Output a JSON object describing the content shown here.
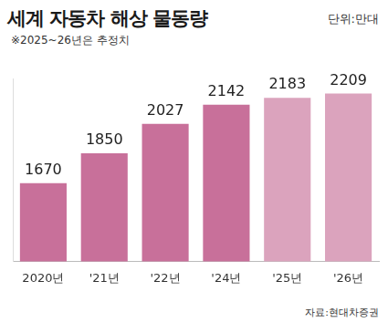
{
  "chart_data": {
    "type": "bar",
    "title": "세계 자동차 해상 물동량",
    "y_label": "단위:만대",
    "subtitle": "※2025~26년은 추정치",
    "source": "자료:현대차증권",
    "categories": [
      "2020년",
      "'21년",
      "'22년",
      "'24년",
      "'25년",
      "'26년"
    ],
    "values": [
      1670,
      1850,
      2027,
      2142,
      2183,
      2209
    ],
    "colors": [
      "#c8709a",
      "#c8709a",
      "#c8709a",
      "#c8709a",
      "#dba3bd",
      "#dba3bd"
    ],
    "ylim": [
      1200,
      2300
    ],
    "grid": false,
    "data_labels": true,
    "tick_labels": "x"
  }
}
